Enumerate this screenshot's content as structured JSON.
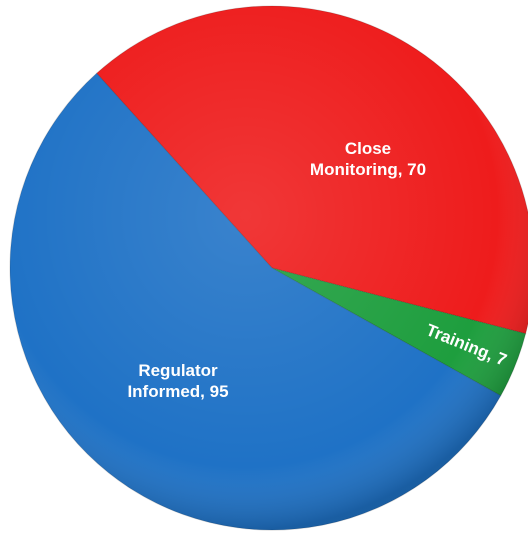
{
  "chart_data": {
    "type": "pie",
    "value_labels": [
      "Close Monitoring, 70",
      "Training, 7",
      "Regulator Informed, 95"
    ],
    "values": [
      70,
      7,
      95
    ],
    "colors": [
      "#ee1c1c",
      "#1e9e3e",
      "#1f72c6"
    ]
  }
}
